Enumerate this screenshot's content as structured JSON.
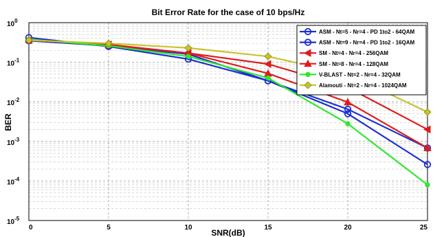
{
  "chart_data": {
    "type": "line",
    "title": "Bit Error Rate for the case of 10 bps/Hz",
    "xlabel": "SNR(dB)",
    "ylabel": "BER",
    "x": [
      0,
      5,
      10,
      15,
      20,
      25
    ],
    "xlim": [
      0,
      25
    ],
    "ylim": [
      1e-05,
      1
    ],
    "yscale": "log",
    "x_ticks": [
      "0",
      "5",
      "10",
      "15",
      "20",
      "25"
    ],
    "y_ticks": [
      {
        "base": "10",
        "exp": "-5"
      },
      {
        "base": "10",
        "exp": "-4"
      },
      {
        "base": "10",
        "exp": "-3"
      },
      {
        "base": "10",
        "exp": "-2"
      },
      {
        "base": "10",
        "exp": "-1"
      },
      {
        "base": "10",
        "exp": "0"
      }
    ],
    "grid": true,
    "legend_position": "top-right",
    "series": [
      {
        "name": "ASM - Nt=5 - Nr=4 - PD 1to2 - 64QAM",
        "color": "#1a2fd0",
        "marker": "circle",
        "values": [
          0.42,
          0.25,
          0.12,
          0.034,
          0.005,
          0.00026
        ]
      },
      {
        "name": "ASM - Nt=9 - Nr=4 - PD 1to2 - 16QAM",
        "color": "#1a2fd0",
        "marker": "circle",
        "values": [
          0.35,
          0.26,
          0.16,
          0.034,
          0.0065,
          0.00068
        ]
      },
      {
        "name": "SM - Nt=4 - Nr=4 - 256QAM",
        "color": "#dd1c1c",
        "marker": "triangle-left",
        "values": [
          0.36,
          0.28,
          0.17,
          0.09,
          0.023,
          0.002
        ]
      },
      {
        "name": "SM - Nt=8 - Nr=4 - 128QAM",
        "color": "#dd1c1c",
        "marker": "triangle-up",
        "values": [
          0.37,
          0.27,
          0.17,
          0.052,
          0.0098,
          0.00068
        ]
      },
      {
        "name": "V-BLAST - Nt=2 - Nr=4 - 32QAM",
        "color": "#2ee82e",
        "marker": "star",
        "values": [
          0.38,
          0.26,
          0.14,
          0.04,
          0.0028,
          8e-05
        ]
      },
      {
        "name": "Alamouti - Nt=2 - Nr=4 - 1024QAM",
        "color": "#c8c22a",
        "marker": "diamond",
        "values": [
          0.36,
          0.3,
          0.23,
          0.14,
          0.05,
          0.0055
        ]
      }
    ]
  }
}
